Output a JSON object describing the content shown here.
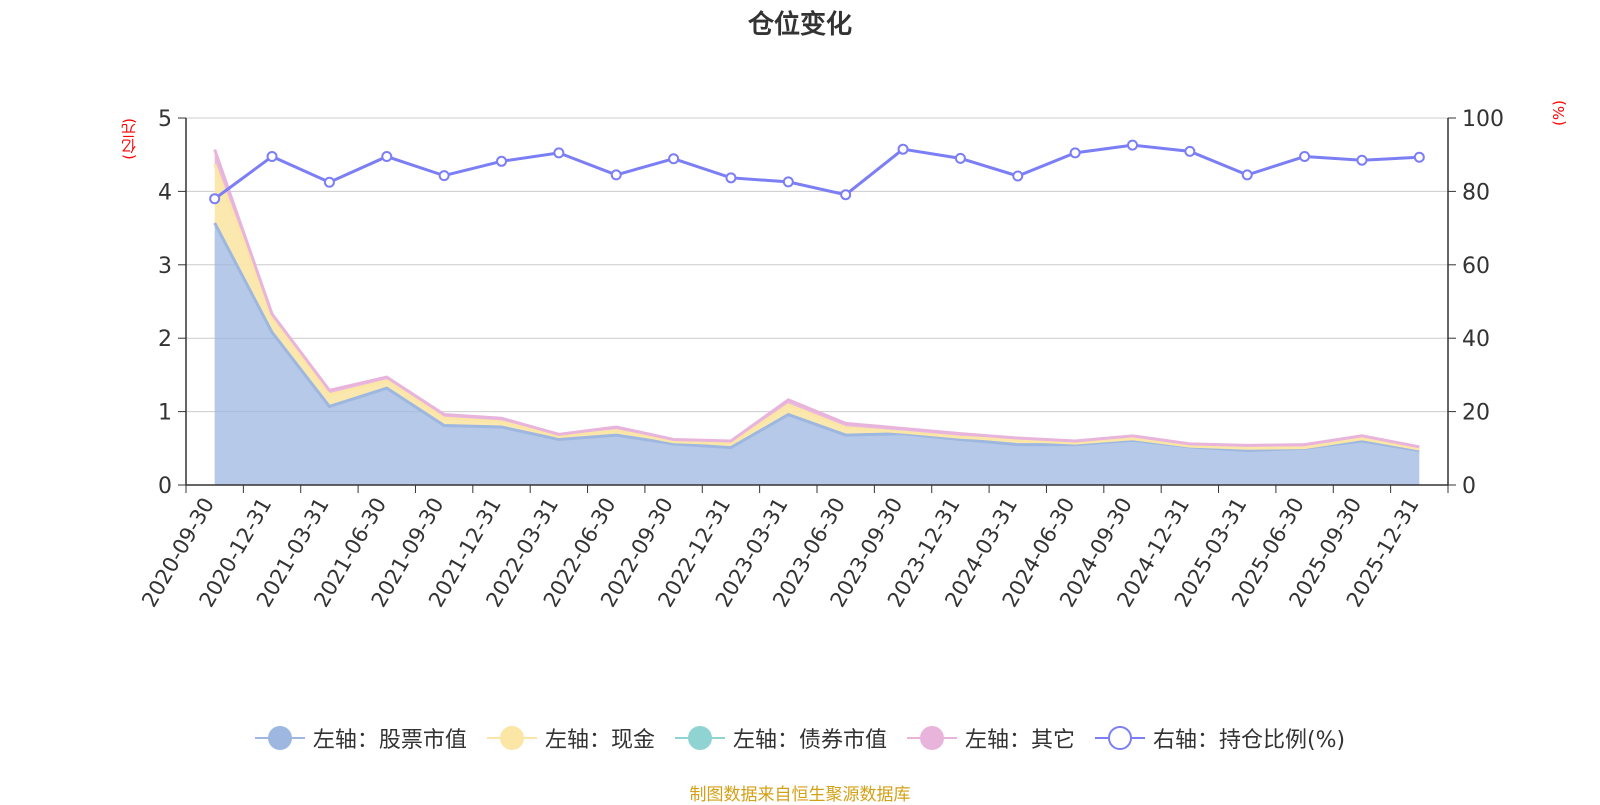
{
  "title": "仓位变化",
  "source": "制图数据来自恒生聚源数据库",
  "chart_data": {
    "type": "area",
    "left_axis_unit": "(亿元)",
    "right_axis_unit": "(%)",
    "ylim_left": [
      0,
      5
    ],
    "ylim_right": [
      0,
      100
    ],
    "left_ticks": [
      "0",
      "1",
      "2",
      "3",
      "4",
      "5"
    ],
    "right_ticks": [
      "0",
      "20",
      "40",
      "60",
      "80",
      "100"
    ],
    "grid": true,
    "legend_position": "bottom",
    "categories": [
      "2020-09-30",
      "2020-12-31",
      "2021-03-31",
      "2021-06-30",
      "2021-09-30",
      "2021-12-31",
      "2022-03-31",
      "2022-06-30",
      "2022-09-30",
      "2022-12-31",
      "2023-03-31",
      "2023-06-30",
      "2023-09-30",
      "2023-12-31",
      "2024-03-31",
      "2024-06-30",
      "2024-09-30",
      "2024-12-31",
      "2025-03-31",
      "2025-06-30",
      "2025-09-30",
      "2025-12-31"
    ],
    "series": [
      {
        "name": "左轴：股票市值",
        "axis": "left",
        "stack": true,
        "color": "#9db7e0",
        "values": [
          3.57,
          2.08,
          1.07,
          1.32,
          0.81,
          0.79,
          0.62,
          0.68,
          0.56,
          0.51,
          0.96,
          0.68,
          0.7,
          0.62,
          0.55,
          0.55,
          0.61,
          0.52,
          0.47,
          0.5,
          0.6,
          0.47
        ]
      },
      {
        "name": "左轴：现金",
        "axis": "left",
        "stack": true,
        "color": "#fbe6a6",
        "values": [
          0.8,
          0.2,
          0.16,
          0.1,
          0.1,
          0.07,
          0.04,
          0.06,
          0.03,
          0.05,
          0.13,
          0.1,
          0.02,
          0.03,
          0.06,
          0.02,
          0.02,
          0.01,
          0.03,
          0.01,
          0.03,
          0.02
        ]
      },
      {
        "name": "左轴：债券市值",
        "axis": "left",
        "stack": true,
        "color": "#8fd3d3",
        "values": [
          0,
          0,
          0,
          0,
          0,
          0,
          0,
          0,
          0,
          0,
          0,
          0,
          0,
          0,
          0,
          0,
          0,
          0,
          0,
          0,
          0,
          0
        ]
      },
      {
        "name": "左轴：其它",
        "axis": "left",
        "stack": true,
        "color": "#e8b4db",
        "values": [
          0.2,
          0.05,
          0.06,
          0.05,
          0.05,
          0.05,
          0.03,
          0.05,
          0.03,
          0.04,
          0.07,
          0.06,
          0.05,
          0.05,
          0.03,
          0.03,
          0.04,
          0.03,
          0.04,
          0.04,
          0.04,
          0.03
        ]
      },
      {
        "name": "右轴：持仓比例(%)",
        "axis": "right",
        "stack": false,
        "color": "#7b7ef5",
        "values": [
          78,
          89.5,
          82.5,
          89.5,
          84.3,
          88.2,
          90.5,
          84.5,
          88.9,
          83.7,
          82.6,
          79.1,
          91.5,
          89.0,
          84.2,
          90.5,
          92.6,
          90.9,
          84.5,
          89.5,
          88.5,
          89.3
        ]
      }
    ]
  }
}
